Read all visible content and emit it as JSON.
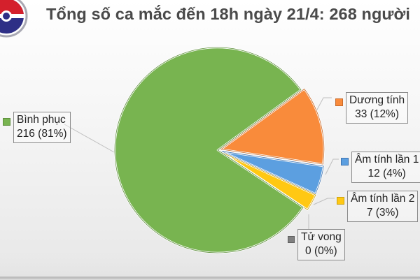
{
  "title": "Tổng số ca mắc đến 18h ngày 21/4: 268 người",
  "logo": {
    "icon": "ministry-of-health-logo-icon"
  },
  "chart_data": {
    "type": "pie",
    "title": "Tổng số ca mắc đến 18h ngày 21/4: 268 người",
    "total": 268,
    "categories": [
      "Bình phục",
      "Dương tính",
      "Âm tính lần 1",
      "Âm tính lần 2",
      "Tử vong"
    ],
    "values": [
      216,
      33,
      12,
      7,
      0
    ],
    "percents": [
      "81%",
      "12%",
      "4%",
      "3%",
      "0%"
    ],
    "colors": [
      "#78b450",
      "#f98b3b",
      "#5c9fe0",
      "#ffc813",
      "#7f7f7f"
    ],
    "edge_colors": [
      "#5e8f3c",
      "#c76a2a",
      "#3f74b0",
      "#c9a00e",
      "#5f5f5f"
    ],
    "legend_position": "data labels with leader lines",
    "exploded": [
      "Dương tính",
      "Âm tính lần 1",
      "Âm tính lần 2"
    ]
  },
  "labels": [
    {
      "name": "Bình phục",
      "value_text": "216 (81%)",
      "color": "#78b450"
    },
    {
      "name": "Dương tính",
      "value_text": "33 (12%)",
      "color": "#f98b3b"
    },
    {
      "name": "Âm tính lần 1",
      "value_text": "12 (4%)",
      "color": "#5c9fe0"
    },
    {
      "name": "Âm tính lần 2",
      "value_text": "7 (3%)",
      "color": "#ffc813"
    },
    {
      "name": "Tử vong",
      "value_text": "0 (0%)",
      "color": "#7f7f7f"
    }
  ]
}
